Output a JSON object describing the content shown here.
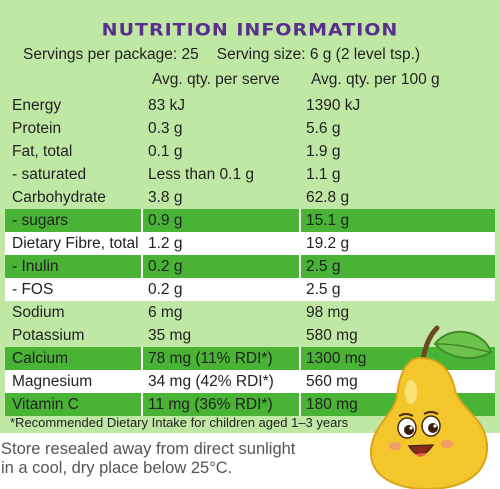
{
  "title": "NUTRITION INFORMATION",
  "servings": {
    "per_package": "Servings per package: 25",
    "serving_size": "Serving size: 6 g (2 level tsp.)"
  },
  "columns": {
    "per_serve": "Avg. qty. per serve",
    "per_100g": "Avg. qty. per 100 g"
  },
  "rows": [
    {
      "name": "Energy",
      "per_serve": "83 kJ",
      "per_100g": "1390 kJ",
      "style": "plain"
    },
    {
      "name": "Protein",
      "per_serve": "0.3 g",
      "per_100g": "5.6 g",
      "style": "plain"
    },
    {
      "name": "Fat, total",
      "per_serve": "0.1 g",
      "per_100g": "1.9 g",
      "style": "plain"
    },
    {
      "name": "- saturated",
      "per_serve": "Less than 0.1 g",
      "per_100g": "1.1 g",
      "style": "plain"
    },
    {
      "name": "Carbohydrate",
      "per_serve": "3.8 g",
      "per_100g": "62.8 g",
      "style": "plain"
    },
    {
      "name": "- sugars",
      "per_serve": "0.9 g",
      "per_100g": "15.1 g",
      "style": "highlight"
    },
    {
      "name": "Dietary Fibre, total",
      "per_serve": "1.2 g",
      "per_100g": "19.2 g",
      "style": "white"
    },
    {
      "name": "- Inulin",
      "per_serve": "0.2 g",
      "per_100g": "2.5 g",
      "style": "highlight"
    },
    {
      "name": "- FOS",
      "per_serve": "0.2 g",
      "per_100g": "2.5 g",
      "style": "white"
    },
    {
      "name": "Sodium",
      "per_serve": "6 mg",
      "per_100g": "98 mg",
      "style": "plain"
    },
    {
      "name": "Potassium",
      "per_serve": "35 mg",
      "per_100g": "580 mg",
      "style": "plain"
    },
    {
      "name": "Calcium",
      "per_serve": "78 mg (11% RDI*)",
      "per_100g": "1300 mg",
      "style": "highlight"
    },
    {
      "name": "Magnesium",
      "per_serve": "34 mg (42% RDI*)",
      "per_100g": "560 mg",
      "style": "white"
    },
    {
      "name": "Vitamin C",
      "per_serve": "11 mg (36% RDI*)",
      "per_100g": "180 mg",
      "style": "highlight"
    }
  ],
  "footnote": "*Recommended Dietary Intake for children aged 1–3 years",
  "storage": {
    "line1": "Store resealed away from direct sunlight",
    "line2": "in a cool, dry place below 25°C."
  },
  "colors": {
    "panel": "#bfe8a4",
    "highlight": "#48b335",
    "title": "#5b2d8e",
    "pear": "#f3c72c"
  }
}
